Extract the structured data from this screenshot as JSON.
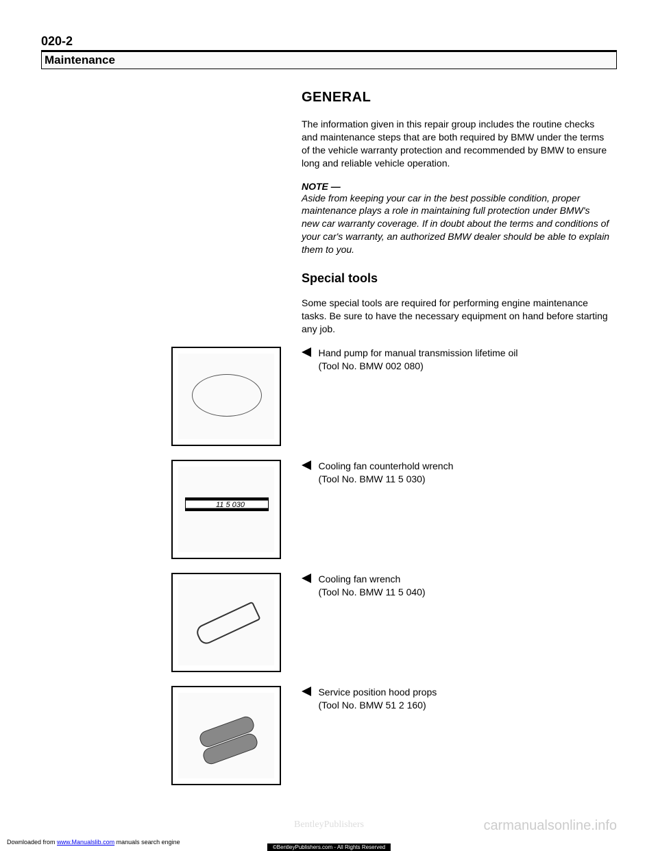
{
  "pageNumber": "020-2",
  "headerBox": "Maintenance",
  "sectionTitle": "GENERAL",
  "introParagraph": "The information given in this repair group includes the routine checks and maintenance steps that are both required by BMW under the terms of the vehicle warranty protection and recommended by BMW to ensure long and reliable vehicle operation.",
  "noteLabel": "NOTE —",
  "noteText": "Aside from keeping your car in the best possible condition, proper maintenance plays a role in maintaining full protection under BMW's new car warranty coverage. If in doubt about the terms and conditions of your car's warranty, an authorized BMW dealer should be able to explain them to you.",
  "subHeading": "Special tools",
  "specialToolsIntro": "Some special tools are required for performing engine maintenance tasks. Be sure to have the necessary equipment on hand before starting any job.",
  "tools": [
    {
      "desc": "Hand pump for manual transmission lifetime oil",
      "toolNo": "(Tool No. BMW 002 080)"
    },
    {
      "desc": "Cooling fan counterhold wrench",
      "toolNo": "(Tool No. BMW 11 5 030)"
    },
    {
      "desc": "Cooling fan wrench",
      "toolNo": "(Tool No. BMW 11 5 040)"
    },
    {
      "desc": "Service position hood props",
      "toolNo": "(Tool No. BMW 51 2 160)"
    }
  ],
  "watermark": "carmanualsonline.info",
  "bentleyWatermark": "BentleyPublishers",
  "downloadPrefix": "Downloaded from ",
  "downloadLink": "www.Manualslib.com",
  "downloadSuffix": " manuals search engine",
  "rightsText": "©BentleyPublishers.com - All Rights Reserved"
}
